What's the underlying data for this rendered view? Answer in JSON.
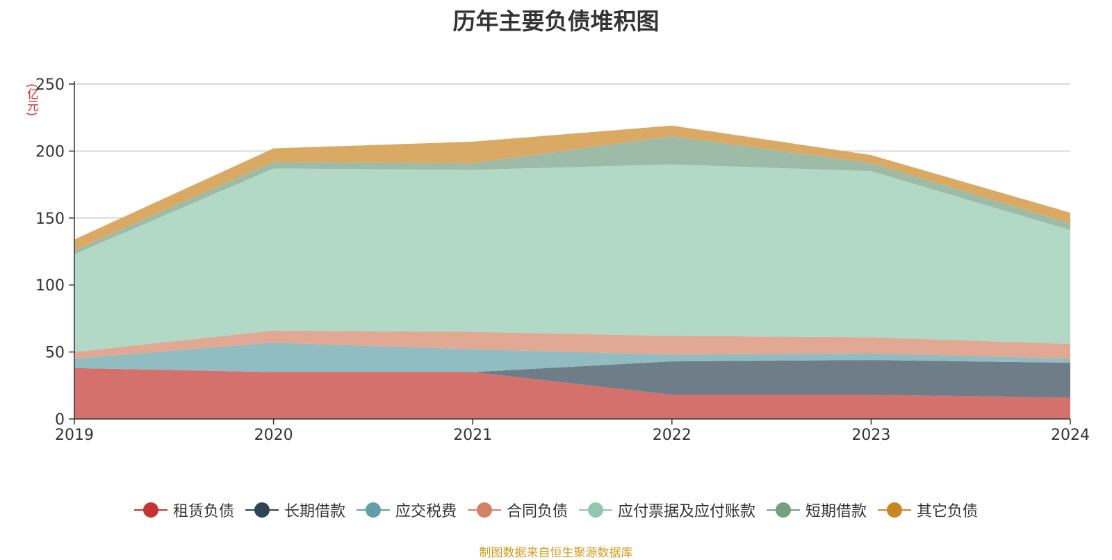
{
  "chart_data": {
    "type": "area",
    "stacked": true,
    "title": "历年主要负债堆积图",
    "unit": "(亿元)",
    "x": [
      "2019",
      "2020",
      "2021",
      "2022",
      "2023",
      "2024"
    ],
    "y_ticks": [
      "0",
      "50",
      "100",
      "150",
      "200",
      "250"
    ],
    "ylim": [
      0,
      250
    ],
    "grid": true,
    "legend_position": "bottom",
    "series": [
      {
        "name": "租赁负债",
        "values": [
          38,
          35,
          35,
          18,
          18,
          16
        ],
        "color": "#c23531",
        "fill": "#d5716d"
      },
      {
        "name": "长期借款",
        "values": [
          0,
          0,
          0,
          25,
          26,
          26
        ],
        "color": "#2f4554",
        "fill": "#6e7d88"
      },
      {
        "name": "应交税费",
        "values": [
          7,
          22,
          17,
          5,
          5,
          3
        ],
        "color": "#61a0a8",
        "fill": "#90bcc2"
      },
      {
        "name": "合同负债",
        "values": [
          5,
          9,
          13,
          14,
          12,
          11
        ],
        "color": "#d48265",
        "fill": "#e1a893"
      },
      {
        "name": "应付票据及应付账款",
        "values": [
          73,
          121,
          121,
          128,
          124,
          85
        ],
        "color": "#91c7ae",
        "fill": "#b2d8c6"
      },
      {
        "name": "短期借款",
        "values": [
          3,
          5,
          5,
          21,
          6,
          5
        ],
        "color": "#749f83",
        "fill": "#9ebba8"
      },
      {
        "name": "其它负债",
        "values": [
          8,
          10,
          16,
          8,
          6,
          8
        ],
        "color": "#ca8622",
        "fill": "#daaa64"
      }
    ]
  },
  "footer": {
    "source": "制图数据来自恒生聚源数据库"
  }
}
